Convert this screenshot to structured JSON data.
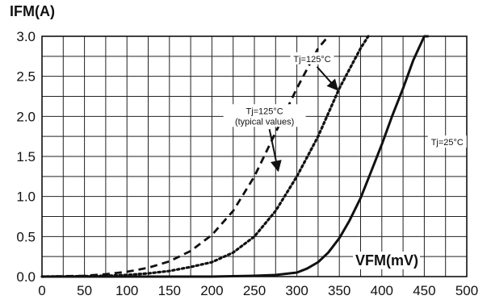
{
  "chart_data": {
    "type": "line",
    "title": "",
    "xlabel": "VFM(mV)",
    "ylabel": "IFM(A)",
    "xlim": [
      0,
      500
    ],
    "ylim": [
      0,
      3.0
    ],
    "grid": true,
    "x_major_ticks": [
      0,
      50,
      100,
      150,
      200,
      250,
      300,
      350,
      400,
      450,
      500
    ],
    "y_major_ticks": [
      0.0,
      0.5,
      1.0,
      1.5,
      2.0,
      2.5,
      3.0
    ],
    "x_tick_labels": [
      "0",
      "50",
      "100",
      "150",
      "200",
      "250",
      "300",
      "350",
      "400",
      "450",
      "500"
    ],
    "y_tick_labels": [
      "0.0",
      "0.5",
      "1.0",
      "1.5",
      "2.0",
      "2.5",
      "3.0"
    ],
    "series": [
      {
        "name": "Tj=125°C (typical values)",
        "style": "dashed",
        "color": "#111111",
        "x": [
          0,
          25,
          50,
          75,
          100,
          125,
          150,
          175,
          200,
          225,
          250,
          275,
          300,
          325,
          337
        ],
        "y": [
          0,
          0.005,
          0.01,
          0.03,
          0.06,
          0.11,
          0.19,
          0.32,
          0.52,
          0.82,
          1.25,
          1.8,
          2.35,
          2.85,
          3.0
        ]
      },
      {
        "name": "Tj=125°C",
        "style": "dotted",
        "color": "#111111",
        "x": [
          0,
          25,
          50,
          75,
          100,
          125,
          150,
          175,
          200,
          225,
          250,
          275,
          300,
          325,
          350,
          375,
          384
        ],
        "y": [
          0,
          0.002,
          0.005,
          0.01,
          0.02,
          0.04,
          0.07,
          0.12,
          0.18,
          0.3,
          0.5,
          0.82,
          1.25,
          1.75,
          2.35,
          2.85,
          3.0
        ]
      },
      {
        "name": "Tj=25°C",
        "style": "solid",
        "color": "#111111",
        "x": [
          0,
          100,
          200,
          250,
          275,
          300,
          312,
          325,
          337,
          350,
          362,
          375,
          387,
          400,
          412,
          425,
          437,
          450,
          455
        ],
        "y": [
          0,
          0,
          0,
          0.01,
          0.02,
          0.05,
          0.1,
          0.18,
          0.3,
          0.48,
          0.7,
          0.98,
          1.3,
          1.65,
          2.0,
          2.35,
          2.7,
          3.0,
          3.0
        ]
      }
    ],
    "annotations": [
      {
        "lines": [
          "Tj=125°C",
          "(typical values)"
        ],
        "x": 262,
        "y": 1.9,
        "arrow_to_x": 278,
        "arrow_to_y": 1.32
      },
      {
        "lines": [
          "Tj=125°C"
        ],
        "x": 318,
        "y": 2.68,
        "arrow_to_x": 348,
        "arrow_to_y": 2.33
      },
      {
        "lines": [
          "Tj=25°C"
        ],
        "x": 477,
        "y": 1.64,
        "arrow_to_x": null,
        "arrow_to_y": null
      }
    ]
  }
}
